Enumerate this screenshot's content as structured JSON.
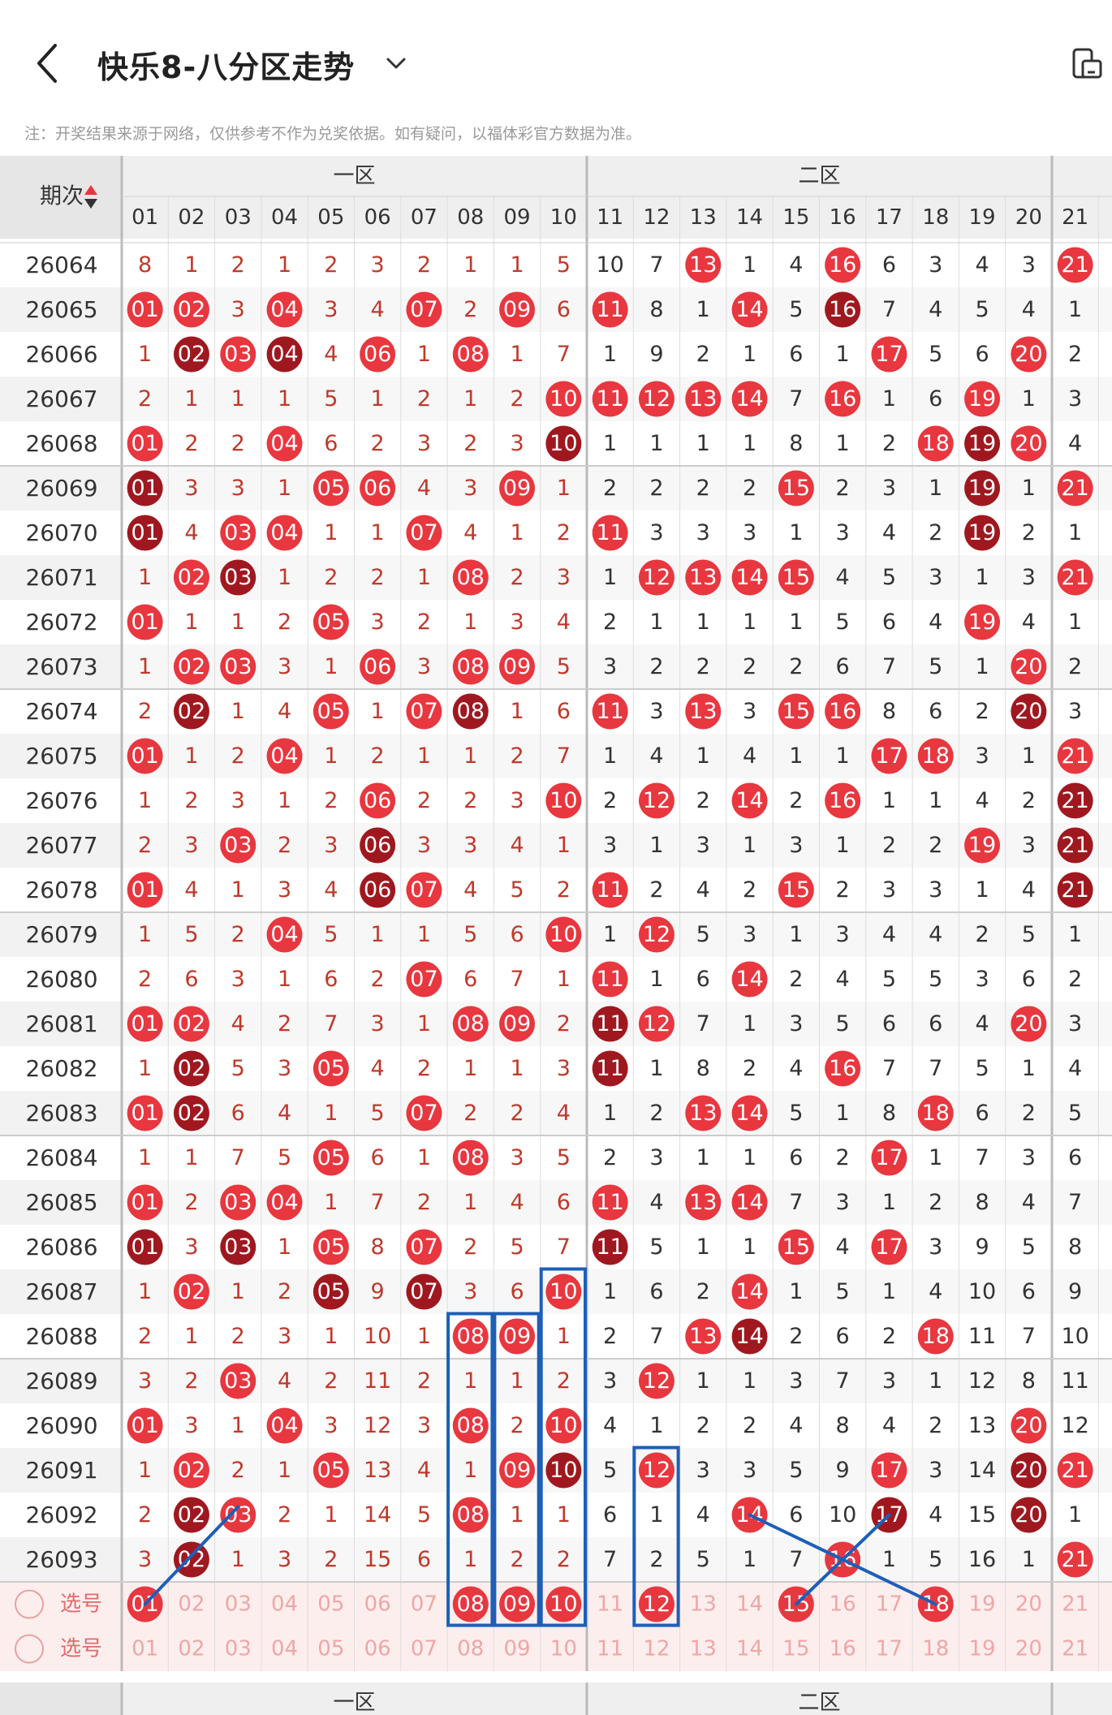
{
  "header": {
    "title": "快乐8-八分区走势",
    "notice": "注：开奖结果来源于网络，仅供参考不作为兑奖依据。如有疑问，以福体彩官方数据为准。"
  },
  "table": {
    "period_header": "期次",
    "zone_labels": [
      "一区",
      "二区"
    ],
    "columns": [
      "01",
      "02",
      "03",
      "04",
      "05",
      "06",
      "07",
      "08",
      "09",
      "10",
      "11",
      "12",
      "13",
      "14",
      "15",
      "16",
      "17",
      "18",
      "19",
      "20",
      "21"
    ],
    "rows": [
      {
        "period": "26064",
        "cells": [
          "8",
          "1",
          "2",
          "1",
          "2",
          "3",
          "2",
          "1",
          "1",
          "5",
          "10",
          "7",
          "13",
          "1",
          "4",
          "16",
          "6",
          "3",
          "4",
          "3",
          "21"
        ]
      },
      {
        "period": "26065",
        "cells": [
          "01",
          "02",
          "3",
          "04",
          "3",
          "4",
          "07",
          "2",
          "09",
          "6",
          "11",
          "8",
          "1",
          "14",
          "5",
          "16",
          "7",
          "4",
          "5",
          "4",
          "1"
        ]
      },
      {
        "period": "26066",
        "cells": [
          "1",
          "02",
          "03",
          "04",
          "4",
          "06",
          "1",
          "08",
          "1",
          "7",
          "1",
          "9",
          "2",
          "1",
          "6",
          "1",
          "17",
          "5",
          "6",
          "20",
          "2"
        ]
      },
      {
        "period": "26067",
        "cells": [
          "2",
          "1",
          "1",
          "1",
          "5",
          "1",
          "2",
          "1",
          "2",
          "10",
          "11",
          "12",
          "13",
          "14",
          "7",
          "16",
          "1",
          "6",
          "19",
          "1",
          "3"
        ]
      },
      {
        "period": "26068",
        "cells": [
          "01",
          "2",
          "2",
          "04",
          "6",
          "2",
          "3",
          "2",
          "3",
          "10",
          "1",
          "1",
          "1",
          "1",
          "8",
          "1",
          "2",
          "18",
          "19",
          "20",
          "4"
        ]
      },
      {
        "period": "26069",
        "cells": [
          "01",
          "3",
          "3",
          "1",
          "05",
          "06",
          "4",
          "3",
          "09",
          "1",
          "2",
          "2",
          "2",
          "2",
          "15",
          "2",
          "3",
          "1",
          "19",
          "1",
          "21"
        ]
      },
      {
        "period": "26070",
        "cells": [
          "01",
          "4",
          "03",
          "04",
          "1",
          "1",
          "07",
          "4",
          "1",
          "2",
          "11",
          "3",
          "3",
          "3",
          "1",
          "3",
          "4",
          "2",
          "19",
          "2",
          "1"
        ]
      },
      {
        "period": "26071",
        "cells": [
          "1",
          "02",
          "03",
          "1",
          "2",
          "2",
          "1",
          "08",
          "2",
          "3",
          "1",
          "12",
          "13",
          "14",
          "15",
          "4",
          "5",
          "3",
          "1",
          "3",
          "21"
        ]
      },
      {
        "period": "26072",
        "cells": [
          "01",
          "1",
          "1",
          "2",
          "05",
          "3",
          "2",
          "1",
          "3",
          "4",
          "2",
          "1",
          "1",
          "1",
          "1",
          "5",
          "6",
          "4",
          "19",
          "4",
          "1"
        ]
      },
      {
        "period": "26073",
        "cells": [
          "1",
          "02",
          "03",
          "3",
          "1",
          "06",
          "3",
          "08",
          "09",
          "5",
          "3",
          "2",
          "2",
          "2",
          "2",
          "6",
          "7",
          "5",
          "1",
          "20",
          "2"
        ]
      },
      {
        "period": "26074",
        "cells": [
          "2",
          "02",
          "1",
          "4",
          "05",
          "1",
          "07",
          "08",
          "1",
          "6",
          "11",
          "3",
          "13",
          "3",
          "15",
          "16",
          "8",
          "6",
          "2",
          "20",
          "3"
        ]
      },
      {
        "period": "26075",
        "cells": [
          "01",
          "1",
          "2",
          "04",
          "1",
          "2",
          "1",
          "1",
          "2",
          "7",
          "1",
          "4",
          "1",
          "4",
          "1",
          "1",
          "17",
          "18",
          "3",
          "1",
          "21"
        ]
      },
      {
        "period": "26076",
        "cells": [
          "1",
          "2",
          "3",
          "1",
          "2",
          "06",
          "2",
          "2",
          "3",
          "10",
          "2",
          "12",
          "2",
          "14",
          "2",
          "16",
          "1",
          "1",
          "4",
          "2",
          "21"
        ]
      },
      {
        "period": "26077",
        "cells": [
          "2",
          "3",
          "03",
          "2",
          "3",
          "06",
          "3",
          "3",
          "4",
          "1",
          "3",
          "1",
          "3",
          "1",
          "3",
          "1",
          "2",
          "2",
          "19",
          "3",
          "21"
        ]
      },
      {
        "period": "26078",
        "cells": [
          "01",
          "4",
          "1",
          "3",
          "4",
          "06",
          "07",
          "4",
          "5",
          "2",
          "11",
          "2",
          "4",
          "2",
          "15",
          "2",
          "3",
          "3",
          "1",
          "4",
          "21"
        ]
      },
      {
        "period": "26079",
        "cells": [
          "1",
          "5",
          "2",
          "04",
          "5",
          "1",
          "1",
          "5",
          "6",
          "10",
          "1",
          "12",
          "5",
          "3",
          "1",
          "3",
          "4",
          "4",
          "2",
          "5",
          "1"
        ]
      },
      {
        "period": "26080",
        "cells": [
          "2",
          "6",
          "3",
          "1",
          "6",
          "2",
          "07",
          "6",
          "7",
          "1",
          "11",
          "1",
          "6",
          "14",
          "2",
          "4",
          "5",
          "5",
          "3",
          "6",
          "2"
        ]
      },
      {
        "period": "26081",
        "cells": [
          "01",
          "02",
          "4",
          "2",
          "7",
          "3",
          "1",
          "08",
          "09",
          "2",
          "11",
          "12",
          "7",
          "1",
          "3",
          "5",
          "6",
          "6",
          "4",
          "20",
          "3"
        ]
      },
      {
        "period": "26082",
        "cells": [
          "1",
          "02",
          "5",
          "3",
          "05",
          "4",
          "2",
          "1",
          "1",
          "3",
          "11",
          "1",
          "8",
          "2",
          "4",
          "16",
          "7",
          "7",
          "5",
          "1",
          "4"
        ]
      },
      {
        "period": "26083",
        "cells": [
          "01",
          "02",
          "6",
          "4",
          "1",
          "5",
          "07",
          "2",
          "2",
          "4",
          "1",
          "2",
          "13",
          "14",
          "5",
          "1",
          "8",
          "18",
          "6",
          "2",
          "5"
        ]
      },
      {
        "period": "26084",
        "cells": [
          "1",
          "1",
          "7",
          "5",
          "05",
          "6",
          "1",
          "08",
          "3",
          "5",
          "2",
          "3",
          "1",
          "1",
          "6",
          "2",
          "17",
          "1",
          "7",
          "3",
          "6"
        ]
      },
      {
        "period": "26085",
        "cells": [
          "01",
          "2",
          "03",
          "04",
          "1",
          "7",
          "2",
          "1",
          "4",
          "6",
          "11",
          "4",
          "13",
          "14",
          "7",
          "3",
          "1",
          "2",
          "8",
          "4",
          "7"
        ]
      },
      {
        "period": "26086",
        "cells": [
          "01",
          "3",
          "03",
          "1",
          "05",
          "8",
          "07",
          "2",
          "5",
          "7",
          "11",
          "5",
          "1",
          "1",
          "15",
          "4",
          "17",
          "3",
          "9",
          "5",
          "8"
        ]
      },
      {
        "period": "26087",
        "cells": [
          "1",
          "02",
          "1",
          "2",
          "05",
          "9",
          "07",
          "3",
          "6",
          "10",
          "1",
          "6",
          "2",
          "14",
          "1",
          "5",
          "1",
          "4",
          "10",
          "6",
          "9"
        ]
      },
      {
        "period": "26088",
        "cells": [
          "2",
          "1",
          "2",
          "3",
          "1",
          "10",
          "1",
          "08",
          "09",
          "1",
          "2",
          "7",
          "13",
          "14",
          "2",
          "6",
          "2",
          "18",
          "11",
          "7",
          "10"
        ]
      },
      {
        "period": "26089",
        "cells": [
          "3",
          "2",
          "03",
          "4",
          "2",
          "11",
          "2",
          "1",
          "1",
          "2",
          "3",
          "12",
          "1",
          "1",
          "3",
          "7",
          "3",
          "1",
          "12",
          "8",
          "11"
        ]
      },
      {
        "period": "26090",
        "cells": [
          "01",
          "3",
          "1",
          "04",
          "3",
          "12",
          "3",
          "08",
          "2",
          "10",
          "4",
          "1",
          "2",
          "2",
          "4",
          "8",
          "4",
          "2",
          "13",
          "20",
          "12"
        ]
      },
      {
        "period": "26091",
        "cells": [
          "1",
          "02",
          "2",
          "1",
          "05",
          "13",
          "4",
          "1",
          "09",
          "10",
          "5",
          "12",
          "3",
          "3",
          "5",
          "9",
          "17",
          "3",
          "14",
          "20",
          "21"
        ]
      },
      {
        "period": "26092",
        "cells": [
          "2",
          "02",
          "03",
          "2",
          "1",
          "14",
          "5",
          "08",
          "1",
          "1",
          "6",
          "1",
          "4",
          "14",
          "6",
          "10",
          "17",
          "4",
          "15",
          "20",
          "1"
        ]
      },
      {
        "period": "26093",
        "cells": [
          "3",
          "02",
          "1",
          "3",
          "2",
          "15",
          "6",
          "1",
          "2",
          "2",
          "7",
          "2",
          "5",
          "1",
          "7",
          "16",
          "1",
          "5",
          "16",
          "1",
          "21"
        ]
      }
    ],
    "select_rows": [
      {
        "label": "选号",
        "selected": [
          "01",
          "08",
          "09",
          "10",
          "12",
          "15",
          "18"
        ]
      },
      {
        "label": "选号",
        "selected": []
      }
    ]
  },
  "colors": {
    "ball_light": "#e8373f",
    "ball_dark": "#a0181f",
    "miss_red": "#c0392b",
    "miss_dark": "#333333",
    "annotation_blue": "#1d5fb8"
  },
  "icons": [
    "back-arrow-icon",
    "chevron-down-icon",
    "device-switch-icon",
    "sort-arrows-icon"
  ]
}
